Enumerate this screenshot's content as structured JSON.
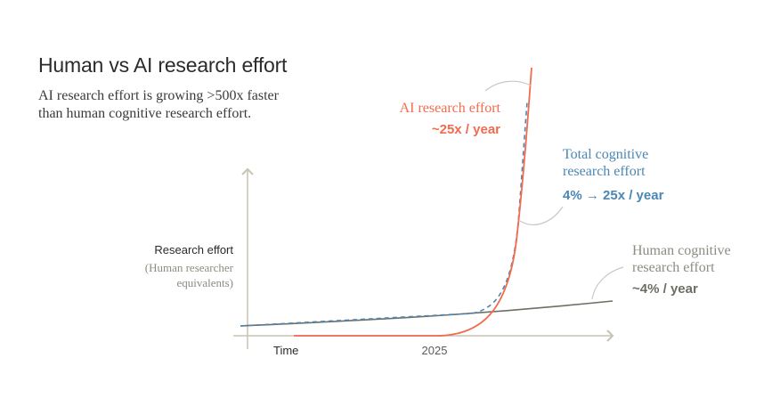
{
  "chart_data": {
    "type": "line",
    "title": "Human vs AI research effort",
    "subtitle_line1": "AI research effort is growing >500x faster",
    "subtitle_line2": "than human cognitive research effort.",
    "ylabel": "Research effort",
    "ylabel_sub_line1": "(Human researcher",
    "ylabel_sub_line2": "equivalents)",
    "xlabel": "Time",
    "x_ticks": [
      "2025"
    ],
    "grid": false,
    "series": [
      {
        "name": "AI research effort",
        "growth_label": "~25x / year",
        "color": "#f26b4f",
        "style": "solid"
      },
      {
        "name_line1": "Total cognitive",
        "name_line2": "research effort",
        "growth_label": "4% → 25x / year",
        "color": "#4a87b3",
        "style": "dashed"
      },
      {
        "name_line1": "Human cognitive",
        "name_line2": "research effort",
        "growth_label": "~4% / year",
        "color": "#6e6e64",
        "style": "solid"
      }
    ],
    "colors": {
      "axis": "#c8c4b4",
      "callout": "#c8c8c8",
      "label_grey": "#8c8c82"
    }
  }
}
